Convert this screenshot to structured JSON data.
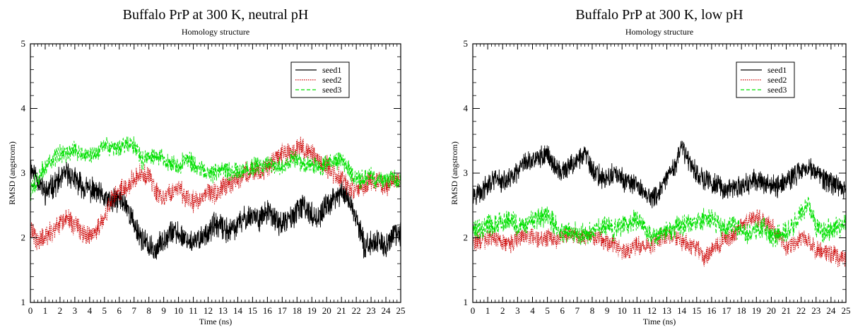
{
  "colors": {
    "seed1": "#000000",
    "seed2": "#cc0000",
    "seed3": "#00e000"
  },
  "chart_data": [
    {
      "type": "line",
      "title": "Buffalo PrP at 300 K, neutral pH",
      "subtitle": "Homology structure",
      "xlabel": "Time (ns)",
      "ylabel": "RMSD (angstrom)",
      "xlim": [
        0,
        25
      ],
      "ylim": [
        1,
        5
      ],
      "xticks": [
        "0",
        "1",
        "2",
        "3",
        "4",
        "5",
        "6",
        "7",
        "8",
        "9",
        "10",
        "11",
        "12",
        "13",
        "14",
        "15",
        "16",
        "17",
        "18",
        "19",
        "20",
        "21",
        "22",
        "23",
        "24",
        "25"
      ],
      "yticks": [
        "1",
        "2",
        "3",
        "4",
        "5"
      ],
      "legend": {
        "position": "top-right",
        "entries": [
          "seed1",
          "seed2",
          "seed3"
        ]
      },
      "series": [
        {
          "name": "seed1",
          "color": "#000000",
          "style": "solid",
          "noise": 0.16,
          "x": [
            0,
            0.5,
            1,
            1.5,
            2,
            2.5,
            3,
            3.5,
            4,
            4.5,
            5,
            5.5,
            6,
            6.5,
            7,
            7.5,
            8,
            8.5,
            9,
            9.5,
            10,
            10.5,
            11,
            11.5,
            12,
            12.5,
            13,
            13.5,
            14,
            14.5,
            15,
            15.5,
            16,
            16.5,
            17,
            17.5,
            18,
            18.5,
            19,
            19.5,
            20,
            20.5,
            21,
            21.5,
            22,
            22.5,
            23,
            23.5,
            24,
            24.5,
            25
          ],
          "y": [
            3.1,
            2.9,
            2.7,
            2.8,
            2.9,
            3.0,
            2.9,
            2.8,
            2.75,
            2.7,
            2.6,
            2.55,
            2.6,
            2.5,
            2.2,
            2.0,
            1.85,
            1.8,
            2.0,
            2.1,
            2.05,
            2.0,
            1.9,
            2.0,
            2.1,
            2.2,
            2.15,
            2.1,
            2.2,
            2.3,
            2.35,
            2.3,
            2.4,
            2.3,
            2.2,
            2.3,
            2.4,
            2.5,
            2.35,
            2.3,
            2.5,
            2.6,
            2.7,
            2.6,
            2.3,
            1.9,
            1.9,
            1.95,
            1.85,
            2.05,
            2.05
          ]
        },
        {
          "name": "seed2",
          "color": "#cc0000",
          "style": "dotted",
          "noise": 0.14,
          "x": [
            0,
            0.5,
            1,
            1.5,
            2,
            2.5,
            3,
            3.5,
            4,
            4.5,
            5,
            5.5,
            6,
            6.5,
            7,
            7.5,
            8,
            8.5,
            9,
            9.5,
            10,
            10.5,
            11,
            11.5,
            12,
            12.5,
            13,
            13.5,
            14,
            14.5,
            15,
            15.5,
            16,
            16.5,
            17,
            17.5,
            18,
            18.5,
            19,
            19.5,
            20,
            20.5,
            21,
            21.5,
            22,
            22.5,
            23,
            23.5,
            24,
            24.5,
            25
          ],
          "y": [
            2.1,
            1.95,
            2.0,
            2.1,
            2.2,
            2.3,
            2.2,
            2.1,
            2.0,
            2.1,
            2.3,
            2.6,
            2.7,
            2.8,
            2.9,
            3.0,
            2.95,
            2.7,
            2.6,
            2.7,
            2.8,
            2.6,
            2.55,
            2.6,
            2.7,
            2.7,
            2.8,
            2.8,
            2.9,
            3.0,
            3.05,
            3.0,
            3.1,
            3.2,
            3.3,
            3.3,
            3.4,
            3.35,
            3.3,
            3.2,
            3.1,
            3.0,
            2.9,
            2.8,
            2.75,
            2.8,
            2.9,
            2.85,
            2.8,
            2.9,
            2.9
          ]
        },
        {
          "name": "seed3",
          "color": "#00e000",
          "style": "dashed",
          "noise": 0.12,
          "x": [
            0,
            0.5,
            1,
            1.5,
            2,
            2.5,
            3,
            3.5,
            4,
            4.5,
            5,
            5.5,
            6,
            6.5,
            7,
            7.5,
            8,
            8.5,
            9,
            9.5,
            10,
            10.5,
            11,
            11.5,
            12,
            12.5,
            13,
            13.5,
            14,
            14.5,
            15,
            15.5,
            16,
            16.5,
            17,
            17.5,
            18,
            18.5,
            19,
            19.5,
            20,
            20.5,
            21,
            21.5,
            22,
            22.5,
            23,
            23.5,
            24,
            24.5,
            25
          ],
          "y": [
            2.7,
            2.9,
            3.1,
            3.2,
            3.3,
            3.3,
            3.35,
            3.3,
            3.25,
            3.3,
            3.45,
            3.4,
            3.4,
            3.45,
            3.45,
            3.2,
            3.25,
            3.3,
            3.2,
            3.15,
            3.1,
            3.2,
            3.15,
            3.1,
            3.0,
            3.0,
            3.1,
            3.0,
            3.0,
            3.05,
            3.1,
            3.1,
            3.15,
            3.1,
            3.1,
            3.2,
            3.2,
            3.15,
            3.1,
            3.1,
            3.15,
            3.2,
            3.2,
            3.05,
            2.9,
            2.9,
            2.95,
            2.85,
            2.9,
            2.9,
            2.9
          ]
        }
      ]
    },
    {
      "type": "line",
      "title": "Buffalo PrP at 300 K, low pH",
      "subtitle": "Homology structure",
      "xlabel": "Time (ns)",
      "ylabel": "RMSD (angstrom)",
      "xlim": [
        0,
        25
      ],
      "ylim": [
        1,
        5
      ],
      "xticks": [
        "0",
        "1",
        "2",
        "3",
        "4",
        "5",
        "6",
        "7",
        "8",
        "9",
        "10",
        "11",
        "12",
        "13",
        "14",
        "15",
        "16",
        "17",
        "18",
        "19",
        "20",
        "21",
        "22",
        "23",
        "24",
        "25"
      ],
      "yticks": [
        "1",
        "2",
        "3",
        "4",
        "5"
      ],
      "legend": {
        "position": "top-right",
        "entries": [
          "seed1",
          "seed2",
          "seed3"
        ]
      },
      "series": [
        {
          "name": "seed1",
          "color": "#000000",
          "style": "solid",
          "noise": 0.14,
          "x": [
            0,
            0.5,
            1,
            1.5,
            2,
            2.5,
            3,
            3.5,
            4,
            4.5,
            5,
            5.5,
            6,
            6.5,
            7,
            7.5,
            8,
            8.5,
            9,
            9.5,
            10,
            10.5,
            11,
            11.5,
            12,
            12.5,
            13,
            13.5,
            14,
            14.5,
            15,
            15.5,
            16,
            16.5,
            17,
            17.5,
            18,
            18.5,
            19,
            19.5,
            20,
            20.5,
            21,
            21.5,
            22,
            22.5,
            23,
            23.5,
            24,
            24.5,
            25
          ],
          "y": [
            2.7,
            2.7,
            2.8,
            2.9,
            2.85,
            2.9,
            3.0,
            3.15,
            3.2,
            3.25,
            3.3,
            3.1,
            3.0,
            3.1,
            3.2,
            3.3,
            3.05,
            2.95,
            2.9,
            3.0,
            2.9,
            2.85,
            2.8,
            2.7,
            2.6,
            2.7,
            2.9,
            3.1,
            3.4,
            3.2,
            3.0,
            2.9,
            2.85,
            2.8,
            2.75,
            2.75,
            2.8,
            2.85,
            2.9,
            2.85,
            2.8,
            2.8,
            2.9,
            2.95,
            3.05,
            3.1,
            3.0,
            2.9,
            2.85,
            2.8,
            2.75
          ]
        },
        {
          "name": "seed2",
          "color": "#cc0000",
          "style": "dotted",
          "noise": 0.12,
          "x": [
            0,
            0.5,
            1,
            1.5,
            2,
            2.5,
            3,
            3.5,
            4,
            4.5,
            5,
            5.5,
            6,
            6.5,
            7,
            7.5,
            8,
            8.5,
            9,
            9.5,
            10,
            10.5,
            11,
            11.5,
            12,
            12.5,
            13,
            13.5,
            14,
            14.5,
            15,
            15.5,
            16,
            16.5,
            17,
            17.5,
            18,
            18.5,
            19,
            19.5,
            20,
            20.5,
            21,
            21.5,
            22,
            22.5,
            23,
            23.5,
            24,
            24.5,
            25
          ],
          "y": [
            1.9,
            1.95,
            2.0,
            2.0,
            1.95,
            1.9,
            2.0,
            2.05,
            2.0,
            2.0,
            2.0,
            1.95,
            2.0,
            2.05,
            2.05,
            2.0,
            2.0,
            2.0,
            1.95,
            1.9,
            1.8,
            1.8,
            1.9,
            1.85,
            1.9,
            2.0,
            2.05,
            2.0,
            1.95,
            1.9,
            1.85,
            1.7,
            1.8,
            1.9,
            2.0,
            2.05,
            2.2,
            2.3,
            2.3,
            2.25,
            2.2,
            2.0,
            1.85,
            1.9,
            2.0,
            1.95,
            1.8,
            1.8,
            1.75,
            1.7,
            1.7
          ]
        },
        {
          "name": "seed3",
          "color": "#00e000",
          "style": "dashed",
          "noise": 0.14,
          "x": [
            0,
            0.5,
            1,
            1.5,
            2,
            2.5,
            3,
            3.5,
            4,
            4.5,
            5,
            5.5,
            6,
            6.5,
            7,
            7.5,
            8,
            8.5,
            9,
            9.5,
            10,
            10.5,
            11,
            11.5,
            12,
            12.5,
            13,
            13.5,
            14,
            14.5,
            15,
            15.5,
            16,
            16.5,
            17,
            17.5,
            18,
            18.5,
            19,
            19.5,
            20,
            20.5,
            21,
            21.5,
            22,
            22.5,
            23,
            23.5,
            24,
            24.5,
            25
          ],
          "y": [
            2.1,
            2.15,
            2.2,
            2.2,
            2.25,
            2.3,
            2.2,
            2.2,
            2.25,
            2.3,
            2.35,
            2.2,
            2.1,
            2.1,
            2.05,
            2.05,
            2.1,
            2.15,
            2.2,
            2.1,
            2.2,
            2.25,
            2.3,
            2.2,
            2.0,
            2.05,
            2.1,
            2.15,
            2.2,
            2.2,
            2.25,
            2.3,
            2.3,
            2.2,
            2.15,
            2.2,
            2.1,
            2.05,
            2.1,
            2.15,
            2.0,
            2.05,
            2.1,
            2.2,
            2.4,
            2.5,
            2.2,
            2.1,
            2.15,
            2.2,
            2.2
          ]
        }
      ]
    }
  ]
}
